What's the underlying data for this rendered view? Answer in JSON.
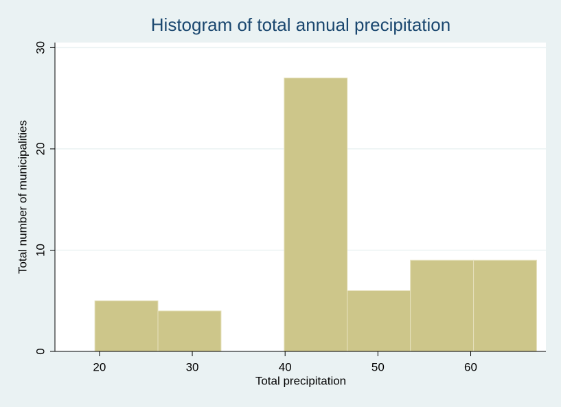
{
  "chart_data": {
    "type": "histogram",
    "title": "Histogram of total annual precipitation",
    "x_label": "Total precipitation",
    "y_label": "Total number of municipalities",
    "bins": [
      19.5,
      26.3,
      33.1,
      39.9,
      46.7,
      53.5,
      60.3,
      67.1
    ],
    "values": [
      5,
      4,
      0,
      27,
      6,
      9,
      9
    ],
    "color": "#cdc68a",
    "xlim": [
      15.2,
      68.1
    ],
    "xticks": [
      20,
      30,
      40,
      50,
      60
    ],
    "ylim": [
      0,
      30.5
    ],
    "yticks": [
      0,
      10,
      20,
      30
    ],
    "grid": true
  }
}
